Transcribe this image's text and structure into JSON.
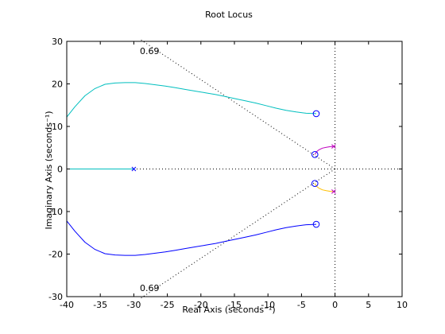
{
  "chart_data": {
    "type": "line",
    "title": "Root Locus",
    "xlabel": "Real Axis (seconds⁻¹)",
    "ylabel": "Imaginary Axis (seconds⁻¹)",
    "xlim": [
      -40,
      10
    ],
    "ylim": [
      -30,
      30
    ],
    "xticks": [
      -40,
      -35,
      -30,
      -25,
      -20,
      -15,
      -10,
      -5,
      0,
      5,
      10
    ],
    "yticks": [
      -30,
      -20,
      -10,
      0,
      10,
      20,
      30
    ],
    "damping_label": "0.69",
    "colors": {
      "cyan": "#00bfbf",
      "blue": "#0000ff",
      "magenta": "#bf00bf",
      "orange": "#ffbf00",
      "grid": "#000000"
    },
    "series": [
      {
        "name": "branch-upper",
        "color": "cyan",
        "x": [
          -40,
          -38.8,
          -37.3,
          -35.8,
          -34.3,
          -32.8,
          -31.3,
          -29.8,
          -28.3,
          -26.8,
          -25.3,
          -23.8,
          -22.3,
          -20.8,
          -19.3,
          -17.8,
          -16.3,
          -14.8,
          -13.3,
          -11.8,
          -10.3,
          -8.8,
          -7.3,
          -5.8,
          -4.3,
          -2.8
        ],
        "y": [
          12.2,
          14.6,
          17.2,
          18.9,
          19.9,
          20.2,
          20.3,
          20.3,
          20.1,
          19.8,
          19.5,
          19.1,
          18.7,
          18.3,
          17.9,
          17.5,
          17.0,
          16.5,
          16.0,
          15.5,
          14.9,
          14.3,
          13.8,
          13.4,
          13.1,
          13.0
        ]
      },
      {
        "name": "branch-lower",
        "color": "blue",
        "x": [
          -40,
          -38.8,
          -37.3,
          -35.8,
          -34.3,
          -32.8,
          -31.3,
          -29.8,
          -28.3,
          -26.8,
          -25.3,
          -23.8,
          -22.3,
          -20.8,
          -19.3,
          -17.8,
          -16.3,
          -14.8,
          -13.3,
          -11.8,
          -10.3,
          -8.8,
          -7.3,
          -5.8,
          -4.3,
          -2.8
        ],
        "y": [
          -12.2,
          -14.6,
          -17.2,
          -18.9,
          -19.9,
          -20.2,
          -20.3,
          -20.3,
          -20.1,
          -19.8,
          -19.5,
          -19.1,
          -18.7,
          -18.3,
          -17.9,
          -17.5,
          -17.0,
          -16.5,
          -16.0,
          -15.5,
          -14.9,
          -14.3,
          -13.8,
          -13.4,
          -13.1,
          -13.0
        ]
      },
      {
        "name": "branch-real",
        "color": "cyan",
        "x": [
          -40,
          -30
        ],
        "y": [
          0,
          0
        ]
      },
      {
        "name": "branch-small-upper",
        "color": "magenta",
        "x": [
          -0.2,
          -0.7,
          -1.3,
          -1.9,
          -2.4,
          -2.8,
          -3.0
        ],
        "y": [
          5.3,
          5.25,
          5.1,
          4.9,
          4.5,
          4.0,
          3.4
        ]
      },
      {
        "name": "branch-small-lower",
        "color": "orange",
        "x": [
          -0.2,
          -0.7,
          -1.3,
          -1.9,
          -2.4,
          -2.8,
          -3.0
        ],
        "y": [
          -5.3,
          -5.25,
          -5.1,
          -4.9,
          -4.5,
          -4.0,
          -3.4
        ]
      }
    ],
    "poles": [
      {
        "x": -30,
        "y": 0,
        "color": "blue"
      },
      {
        "x": -0.2,
        "y": 5.3,
        "color": "magenta"
      },
      {
        "x": -0.2,
        "y": -5.3,
        "color": "magenta"
      }
    ],
    "zeros": [
      {
        "x": -2.8,
        "y": 13.0
      },
      {
        "x": -3.0,
        "y": 3.4
      },
      {
        "x": -3.0,
        "y": -3.4
      },
      {
        "x": -2.8,
        "y": -13.0
      }
    ]
  }
}
